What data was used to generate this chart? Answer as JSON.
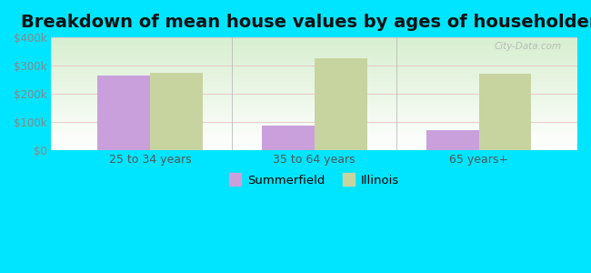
{
  "title": "Breakdown of mean house values by ages of householders",
  "categories": [
    "25 to 34 years",
    "35 to 64 years",
    "65 years+"
  ],
  "summerfield_values": [
    265000,
    85000,
    70000
  ],
  "illinois_values": [
    275000,
    325000,
    272000
  ],
  "summerfield_color": "#c9a0dc",
  "illinois_color": "#c8d4a0",
  "background_color": "#00e5ff",
  "ylim": [
    0,
    400000
  ],
  "yticks": [
    0,
    100000,
    200000,
    300000,
    400000
  ],
  "ytick_labels": [
    "$0",
    "$100k",
    "$200k",
    "$300k",
    "$400k"
  ],
  "bar_width": 0.32,
  "title_fontsize": 14,
  "legend_labels": [
    "Summerfield",
    "Illinois"
  ],
  "watermark": "City-Data.com"
}
